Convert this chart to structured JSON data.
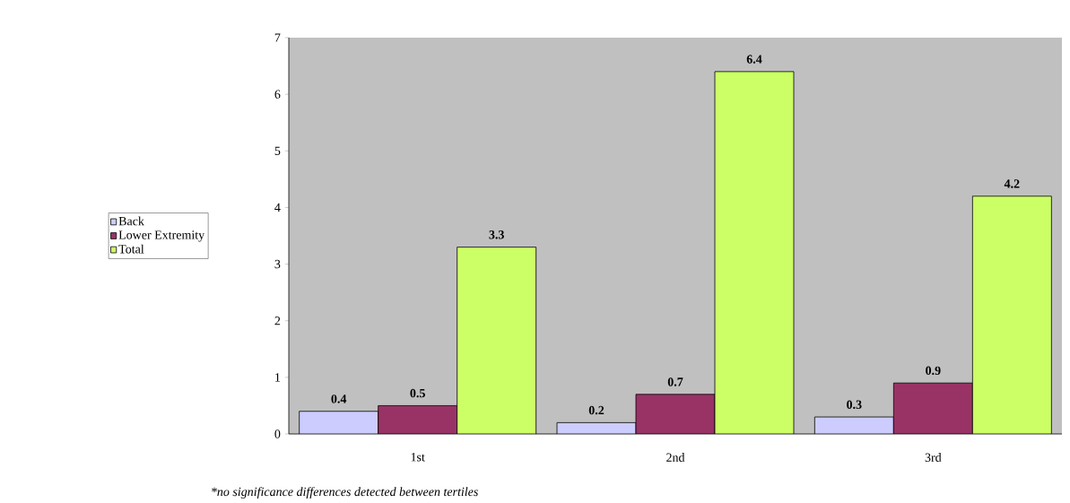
{
  "chart_data": {
    "type": "bar",
    "categories": [
      "1st",
      "2nd",
      "3rd"
    ],
    "series": [
      {
        "name": "Back",
        "color": "#ccccff",
        "values": [
          0.4,
          0.2,
          0.3
        ]
      },
      {
        "name": "Lower Extremity",
        "color": "#993366",
        "values": [
          0.5,
          0.7,
          0.9
        ]
      },
      {
        "name": "Total",
        "color": "#ccff66",
        "values": [
          3.3,
          6.4,
          4.2
        ]
      }
    ],
    "ylim": [
      0,
      7
    ],
    "yticks": [
      0,
      1,
      2,
      3,
      4,
      5,
      6,
      7
    ],
    "data_labels": true,
    "legend": "left",
    "grid": false,
    "annotations": [
      "*no significance differences detected between tertiles"
    ]
  }
}
